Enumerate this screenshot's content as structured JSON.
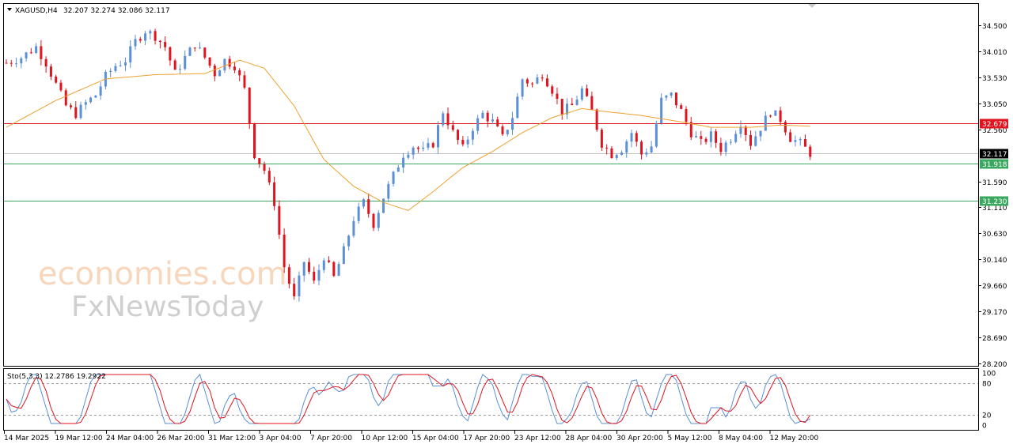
{
  "header": {
    "symbol": "XAGUSD,H4",
    "ohlc": "32.207 32.274 32.086 32.117"
  },
  "watermark": {
    "line1": "economies.com",
    "line2": "FxNewsToday"
  },
  "indicator": {
    "label": "Sto(5,3,3) 12.2786 19.2922",
    "levels": [
      "100",
      "80",
      "20",
      "0"
    ]
  },
  "colors": {
    "bull": "#5b8fd6",
    "bear": "#e0141e",
    "ma": "#f0a030",
    "resistance": "#e0141e",
    "support": "#3aa860",
    "current": "#000000",
    "stoch_main": "#5b8fd6",
    "stoch_signal": "#e0141e"
  },
  "chart_data": {
    "type": "candlestick",
    "symbol": "XAGUSD",
    "timeframe": "H4",
    "ylim": [
      28.2,
      34.5
    ],
    "y_ticks": [
      "34.500",
      "34.010",
      "33.530",
      "33.050",
      "32.560",
      "32.117",
      "31.590",
      "31.110",
      "30.630",
      "30.140",
      "29.660",
      "29.170",
      "28.690",
      "28.200"
    ],
    "x_labels": [
      "14 Mar 2025",
      "19 Mar 12:00",
      "24 Mar 04:00",
      "26 Mar 20:00",
      "31 Mar 12:00",
      "3 Apr 04:00",
      "7 Apr 20:00",
      "10 Apr 12:00",
      "15 Apr 04:00",
      "17 Apr 20:00",
      "23 Apr 12:00",
      "28 Apr 04:00",
      "30 Apr 20:00",
      "5 May 12:00",
      "8 May 04:00",
      "12 May 20:00"
    ],
    "price_path": [
      [
        0,
        33.8
      ],
      [
        3,
        33.9
      ],
      [
        6,
        34.1
      ],
      [
        8,
        33.8
      ],
      [
        10,
        33.4
      ],
      [
        12,
        33.0
      ],
      [
        14,
        32.85
      ],
      [
        16,
        33.05
      ],
      [
        18,
        33.2
      ],
      [
        20,
        33.55
      ],
      [
        22,
        33.75
      ],
      [
        24,
        33.85
      ],
      [
        26,
        34.2
      ],
      [
        28,
        34.4
      ],
      [
        30,
        34.3
      ],
      [
        32,
        34.1
      ],
      [
        34,
        33.6
      ],
      [
        36,
        33.9
      ],
      [
        38,
        34.15
      ],
      [
        40,
        33.9
      ],
      [
        42,
        33.6
      ],
      [
        44,
        33.85
      ],
      [
        46,
        33.75
      ],
      [
        48,
        33.3
      ],
      [
        50,
        32.1
      ],
      [
        52,
        31.8
      ],
      [
        54,
        31.2
      ],
      [
        56,
        30.0
      ],
      [
        58,
        29.4
      ],
      [
        60,
        30.1
      ],
      [
        62,
        29.7
      ],
      [
        64,
        30.2
      ],
      [
        66,
        29.8
      ],
      [
        68,
        30.3
      ],
      [
        70,
        30.9
      ],
      [
        72,
        31.2
      ],
      [
        74,
        30.8
      ],
      [
        76,
        31.3
      ],
      [
        78,
        31.7
      ],
      [
        80,
        32.1
      ],
      [
        82,
        32.25
      ],
      [
        84,
        32.15
      ],
      [
        86,
        32.3
      ],
      [
        88,
        32.9
      ],
      [
        90,
        32.5
      ],
      [
        92,
        32.2
      ],
      [
        94,
        32.6
      ],
      [
        96,
        32.85
      ],
      [
        98,
        32.7
      ],
      [
        100,
        32.4
      ],
      [
        102,
        32.8
      ],
      [
        104,
        33.5
      ],
      [
        106,
        33.4
      ],
      [
        108,
        33.6
      ],
      [
        110,
        33.3
      ],
      [
        112,
        32.9
      ],
      [
        114,
        33.0
      ],
      [
        116,
        33.3
      ],
      [
        118,
        32.9
      ],
      [
        120,
        32.3
      ],
      [
        122,
        32.1
      ],
      [
        124,
        32.2
      ],
      [
        126,
        32.5
      ],
      [
        128,
        32.1
      ],
      [
        130,
        32.25
      ],
      [
        132,
        33.1
      ],
      [
        134,
        33.2
      ],
      [
        136,
        32.9
      ],
      [
        138,
        32.5
      ],
      [
        140,
        32.3
      ],
      [
        142,
        32.45
      ],
      [
        144,
        32.2
      ],
      [
        146,
        32.4
      ],
      [
        148,
        32.7
      ],
      [
        150,
        32.3
      ],
      [
        152,
        32.6
      ],
      [
        154,
        32.9
      ],
      [
        156,
        32.75
      ],
      [
        158,
        32.4
      ],
      [
        160,
        32.3
      ],
      [
        162,
        32.117
      ]
    ],
    "ma_path": [
      [
        0,
        32.6
      ],
      [
        10,
        33.1
      ],
      [
        20,
        33.5
      ],
      [
        30,
        33.58
      ],
      [
        40,
        33.6
      ],
      [
        47,
        33.85
      ],
      [
        52,
        33.7
      ],
      [
        58,
        33.0
      ],
      [
        64,
        32.0
      ],
      [
        70,
        31.5
      ],
      [
        76,
        31.2
      ],
      [
        81,
        31.05
      ],
      [
        86,
        31.4
      ],
      [
        92,
        31.85
      ],
      [
        98,
        32.15
      ],
      [
        104,
        32.5
      ],
      [
        110,
        32.78
      ],
      [
        116,
        32.95
      ],
      [
        120,
        32.9
      ],
      [
        128,
        32.82
      ],
      [
        136,
        32.7
      ],
      [
        142,
        32.6
      ],
      [
        150,
        32.6
      ],
      [
        156,
        32.64
      ],
      [
        162,
        32.62
      ]
    ],
    "horizontal_lines": [
      {
        "value": 32.679,
        "label": "32.679",
        "kind": "resistance"
      },
      {
        "value": 32.117,
        "label": "32.117",
        "kind": "current"
      },
      {
        "value": 31.918,
        "label": "31.918",
        "kind": "support"
      },
      {
        "value": 31.23,
        "label": "31.230",
        "kind": "support"
      }
    ],
    "stochastic": {
      "k": 5,
      "d": 3,
      "slowing": 3,
      "main": 12.2786,
      "signal": 19.2922,
      "levels": [
        80,
        20
      ],
      "ylim": [
        0,
        100
      ]
    }
  }
}
